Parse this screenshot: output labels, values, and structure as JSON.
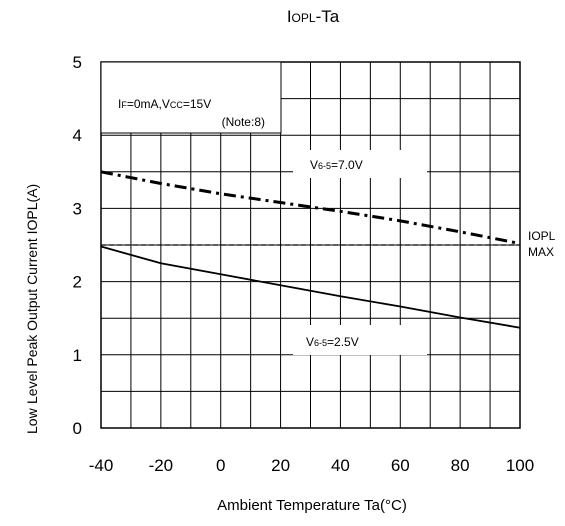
{
  "chart_data": {
    "type": "line",
    "title": {
      "main": "I",
      "sub": "OPL",
      "tail": "-Ta"
    },
    "xlabel": "Ambient Temperature Ta(°C)",
    "ylabel": {
      "prefix": "Low",
      "main": "Level Peak Output Current IOPL(A)"
    },
    "xlim": [
      -40,
      100
    ],
    "ylim": [
      0,
      5
    ],
    "x_ticks": [
      "-40",
      "-20",
      "0",
      "20",
      "40",
      "60",
      "80",
      "100"
    ],
    "y_ticks": [
      "0",
      "1",
      "2",
      "3",
      "4",
      "5"
    ],
    "grid": true,
    "condition": {
      "line1": {
        "a": "I",
        "a_sub": "F",
        "b": "=0mA,V",
        "b_sub": "CC",
        "c": "=15V"
      },
      "line2": "(Note:8)"
    },
    "max_line": {
      "y": 2.5,
      "label_top": "IOPL",
      "label_bottom": "MAX"
    },
    "series": [
      {
        "name": "V6-5=7.0V",
        "label": {
          "pre": "V",
          "sub": "6-5",
          "post": "=7.0V"
        },
        "style": "dash-dot",
        "x": [
          -40,
          -20,
          0,
          20,
          40,
          60,
          80,
          100
        ],
        "y": [
          3.5,
          3.34,
          3.2,
          3.08,
          2.96,
          2.83,
          2.68,
          2.52
        ]
      },
      {
        "name": "V6-5=2.5V",
        "label": {
          "pre": "V",
          "sub": "6-5",
          "post": "=2.5V"
        },
        "style": "solid",
        "x": [
          -40,
          -20,
          0,
          20,
          40,
          60,
          80,
          100
        ],
        "y": [
          2.48,
          2.25,
          2.1,
          1.95,
          1.8,
          1.66,
          1.51,
          1.37
        ]
      }
    ]
  }
}
